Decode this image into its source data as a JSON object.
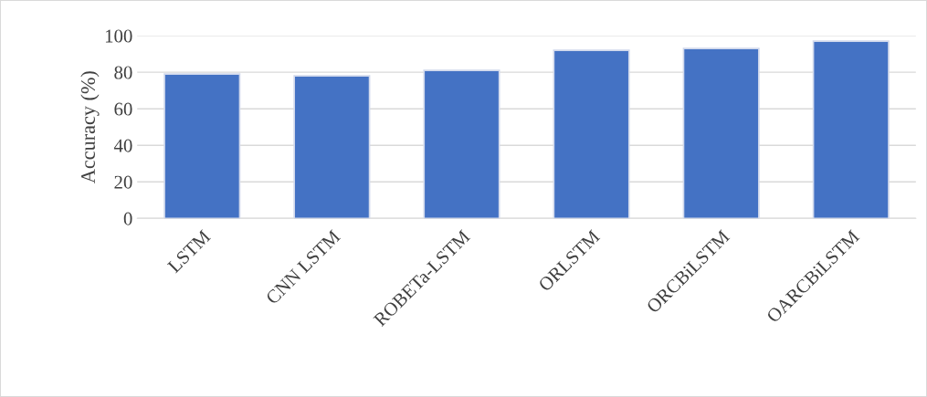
{
  "chart_data": {
    "type": "bar",
    "ylabel": "Accuracy (%)",
    "categories": [
      "LSTM",
      "CNN LSTM",
      "ROBETa-LSTM",
      "ORLSTM",
      "ORCBiLSTM",
      "OARCBiLSTM"
    ],
    "values": [
      79,
      78,
      81,
      92,
      93,
      97
    ],
    "color": "#4472c4",
    "ylim": [
      0,
      100
    ],
    "yticks": [
      0,
      20,
      40,
      60,
      80,
      100
    ],
    "grid": "y"
  }
}
